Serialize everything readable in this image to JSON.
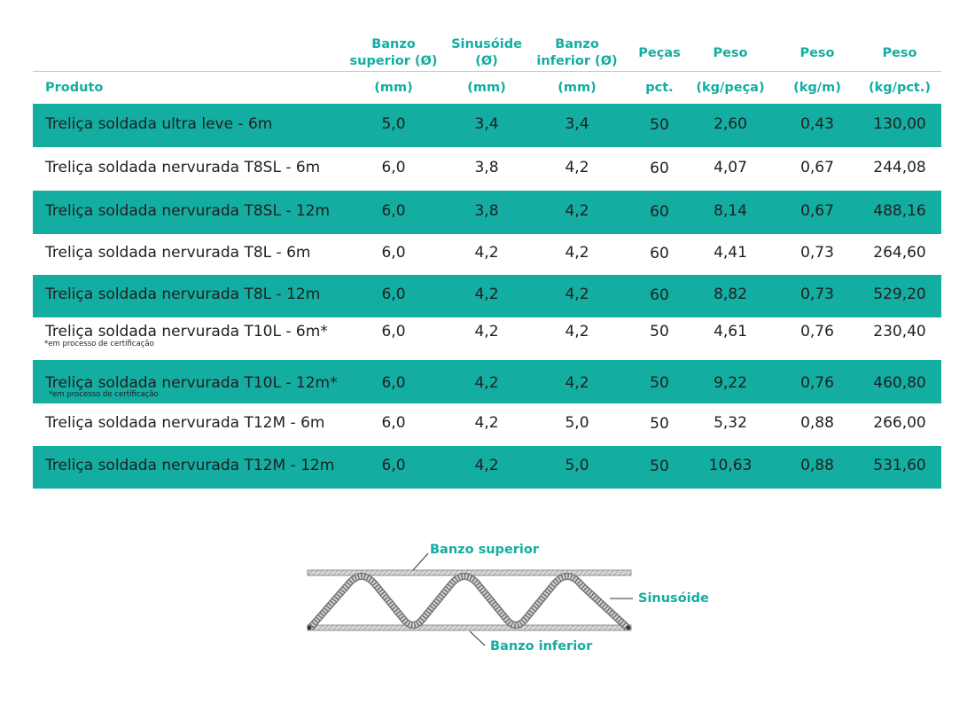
{
  "table": {
    "headers": [
      {
        "key": "produto",
        "title": "",
        "unit": "Produto"
      },
      {
        "key": "banzo_superior",
        "title": "Banzo superior (Ø)",
        "unit": "(mm)"
      },
      {
        "key": "sinusoide",
        "title": "Sinusóide (Ø)",
        "unit": "(mm)"
      },
      {
        "key": "banzo_inferior",
        "title": "Banzo inferior (Ø)",
        "unit": "(mm)"
      },
      {
        "key": "pecas",
        "title": "Peças",
        "unit": "pct."
      },
      {
        "key": "peso_peca",
        "title": "Peso",
        "unit": "(kg/peça)"
      },
      {
        "key": "peso_m",
        "title": "Peso",
        "unit": "(kg/m)"
      },
      {
        "key": "peso_pct",
        "title": "Peso",
        "unit": "(kg/pct.)"
      }
    ],
    "header_lines": {
      "banzo_superior": [
        "Banzo",
        "superior (Ø)"
      ],
      "sinusoide": [
        "Sinusóide",
        "(Ø)"
      ],
      "banzo_inferior": [
        "Banzo",
        "inferior (Ø)"
      ],
      "pecas": [
        "Peças"
      ],
      "peso_peca": [
        "Peso"
      ],
      "peso_m": [
        "Peso"
      ],
      "peso_pct": [
        "Peso"
      ]
    },
    "rows": [
      {
        "produto": "Treliça soldada ultra leve - 6m",
        "note": "",
        "banzo_superior": "5,0",
        "sinusoide": "3,4",
        "banzo_inferior": "3,4",
        "pecas": "50",
        "peso_peca": "2,60",
        "peso_m": "0,43",
        "peso_pct": "130,00",
        "shaded": true
      },
      {
        "produto": "Treliça soldada nervurada T8SL - 6m",
        "note": "",
        "banzo_superior": "6,0",
        "sinusoide": "3,8",
        "banzo_inferior": "4,2",
        "pecas": "60",
        "peso_peca": "4,07",
        "peso_m": "0,67",
        "peso_pct": "244,08",
        "shaded": false
      },
      {
        "produto": "Treliça soldada nervurada T8SL - 12m",
        "note": "",
        "banzo_superior": "6,0",
        "sinusoide": "3,8",
        "banzo_inferior": "4,2",
        "pecas": "60",
        "peso_peca": "8,14",
        "peso_m": "0,67",
        "peso_pct": "488,16",
        "shaded": true
      },
      {
        "produto": "Treliça soldada nervurada T8L - 6m",
        "note": "",
        "banzo_superior": "6,0",
        "sinusoide": "4,2",
        "banzo_inferior": "4,2",
        "pecas": "60",
        "peso_peca": "4,41",
        "peso_m": "0,73",
        "peso_pct": "264,60",
        "shaded": false
      },
      {
        "produto": "Treliça soldada nervurada T8L - 12m",
        "note": "",
        "banzo_superior": "6,0",
        "sinusoide": "4,2",
        "banzo_inferior": "4,2",
        "pecas": "60",
        "peso_peca": "8,82",
        "peso_m": "0,73",
        "peso_pct": "529,20",
        "shaded": true
      },
      {
        "produto": "Treliça soldada nervurada T10L - 6m*",
        "note": "*em processo de certificação",
        "banzo_superior": "6,0",
        "sinusoide": "4,2",
        "banzo_inferior": "4,2",
        "pecas": "50",
        "peso_peca": "4,61",
        "peso_m": "0,76",
        "peso_pct": "230,40",
        "shaded": false
      },
      {
        "produto": "Treliça soldada nervurada T10L - 12m*",
        "note": "*em processo de certificação",
        "banzo_superior": "6,0",
        "sinusoide": "4,2",
        "banzo_inferior": "4,2",
        "pecas": "50",
        "peso_peca": "9,22",
        "peso_m": "0,76",
        "peso_pct": "460,80",
        "shaded": true
      },
      {
        "produto": "Treliça soldada nervurada T12M - 6m",
        "note": "",
        "banzo_superior": "6,0",
        "sinusoide": "4,2",
        "banzo_inferior": "5,0",
        "pecas": "50",
        "peso_peca": "5,32",
        "peso_m": "0,88",
        "peso_pct": "266,00",
        "shaded": false
      },
      {
        "produto": "Treliça soldada nervurada T12M - 12m",
        "note": "",
        "banzo_superior": "6,0",
        "sinusoide": "4,2",
        "banzo_inferior": "5,0",
        "pecas": "50",
        "peso_peca": "10,63",
        "peso_m": "0,88",
        "peso_pct": "531,60",
        "shaded": true
      }
    ]
  },
  "diagram": {
    "label_top": "Banzo superior",
    "label_right": "Sinusóide",
    "label_bottom": "Banzo inferior"
  },
  "colors": {
    "accent": "#14ada1",
    "rule": "#9ed8d3",
    "text": "#1f1f1f"
  }
}
